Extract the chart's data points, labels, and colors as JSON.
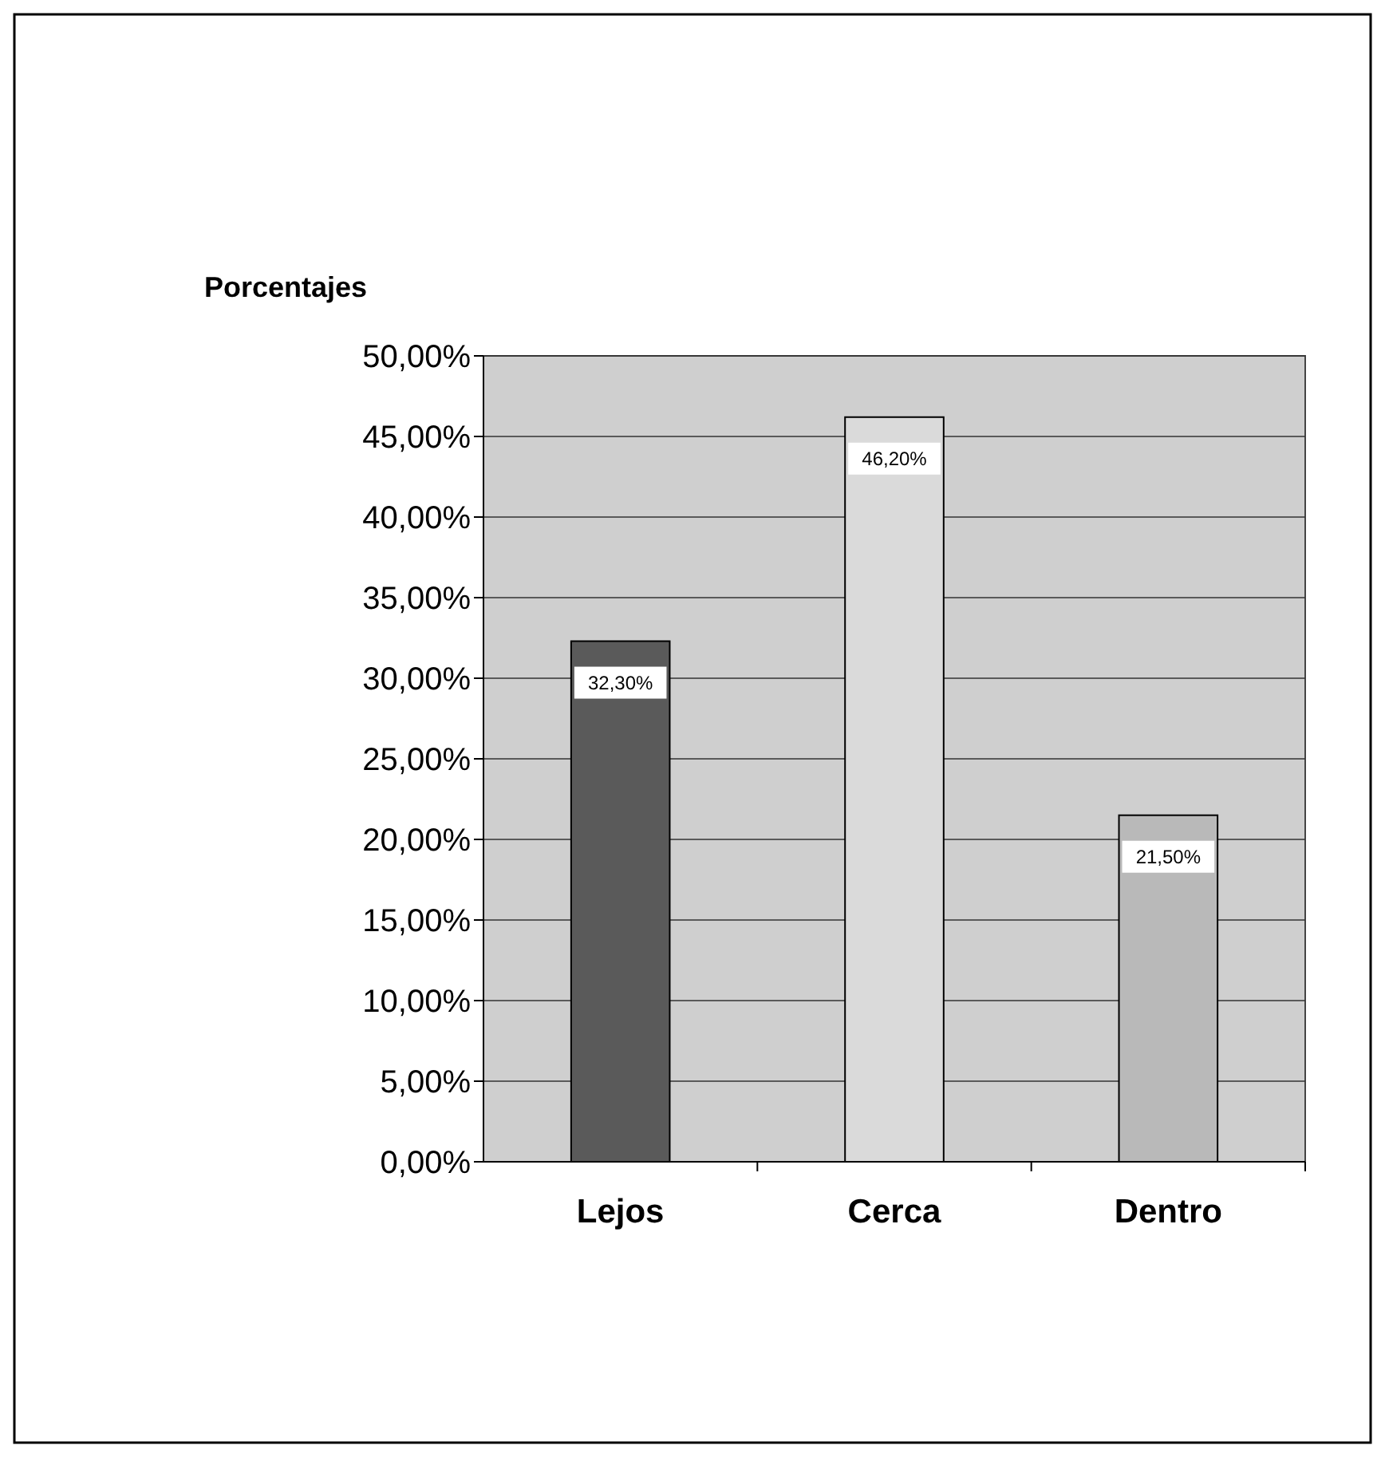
{
  "chart_data": {
    "type": "bar",
    "ylabel": "Porcentajes",
    "categories": [
      "Lejos",
      "Cerca",
      "Dentro"
    ],
    "values": [
      32.3,
      46.2,
      21.5
    ],
    "colors": [
      "#5a5a5a",
      "#dadada",
      "#b9b9b9"
    ],
    "value_labels": [
      "32,30%",
      "46,20%",
      "21,50%"
    ],
    "ylim": [
      0,
      50
    ],
    "yticks": [
      {
        "value": 0,
        "label": "0,00%"
      },
      {
        "value": 5,
        "label": "5,00%"
      },
      {
        "value": 10,
        "label": "10,00%"
      },
      {
        "value": 15,
        "label": "15,00%"
      },
      {
        "value": 20,
        "label": "20,00%"
      },
      {
        "value": 25,
        "label": "25,00%"
      },
      {
        "value": 30,
        "label": "30,00%"
      },
      {
        "value": 35,
        "label": "35,00%"
      },
      {
        "value": 40,
        "label": "40,00%"
      },
      {
        "value": 45,
        "label": "45,00%"
      },
      {
        "value": 50,
        "label": "50,00%"
      }
    ],
    "grid": "y"
  }
}
